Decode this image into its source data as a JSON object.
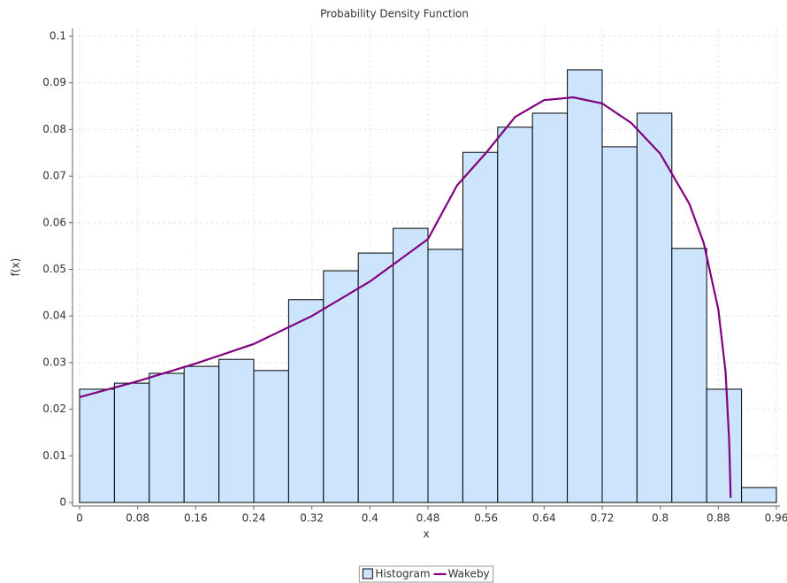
{
  "chart_data": {
    "type": "histogram",
    "title": "Probability Density Function",
    "x_label": "x",
    "y_label": "f(x)",
    "xlim": [
      0,
      0.96
    ],
    "ylim": [
      0,
      0.1
    ],
    "xticks": [
      0,
      0.08,
      0.16,
      0.24,
      0.32,
      0.4,
      0.48,
      0.56,
      0.64,
      0.72,
      0.8,
      0.88,
      0.96
    ],
    "yticks": [
      0,
      0.01,
      0.02,
      0.03,
      0.04,
      0.05,
      0.06,
      0.07,
      0.08,
      0.09,
      0.1
    ],
    "grid": true,
    "legend": "bottom",
    "series": [
      {
        "name": "Histogram",
        "type": "histogram",
        "color": "#cce4fc",
        "bins": [
          0,
          0.048,
          0.096,
          0.144,
          0.192,
          0.24,
          0.288,
          0.336,
          0.384,
          0.432,
          0.48,
          0.528,
          0.576,
          0.624,
          0.672,
          0.72,
          0.768,
          0.816,
          0.864,
          0.912,
          0.96
        ],
        "values": [
          0.0243,
          0.0256,
          0.0277,
          0.0292,
          0.0307,
          0.0283,
          0.0435,
          0.0497,
          0.0535,
          0.0588,
          0.0543,
          0.0751,
          0.0805,
          0.0835,
          0.0928,
          0.0763,
          0.0835,
          0.0545,
          0.0243,
          0.0032
        ]
      },
      {
        "name": "Wakeby",
        "type": "line",
        "color": "#800080",
        "x": [
          0,
          0.08,
          0.16,
          0.24,
          0.32,
          0.4,
          0.48,
          0.52,
          0.56,
          0.6,
          0.64,
          0.68,
          0.72,
          0.76,
          0.8,
          0.84,
          0.86,
          0.88,
          0.89,
          0.895,
          0.897
        ],
        "values": [
          0.0226,
          0.026,
          0.0298,
          0.034,
          0.04,
          0.0474,
          0.0565,
          0.068,
          0.075,
          0.0827,
          0.0863,
          0.0869,
          0.0856,
          0.0814,
          0.0748,
          0.0641,
          0.0556,
          0.0414,
          0.028,
          0.013,
          0.001
        ]
      }
    ]
  }
}
